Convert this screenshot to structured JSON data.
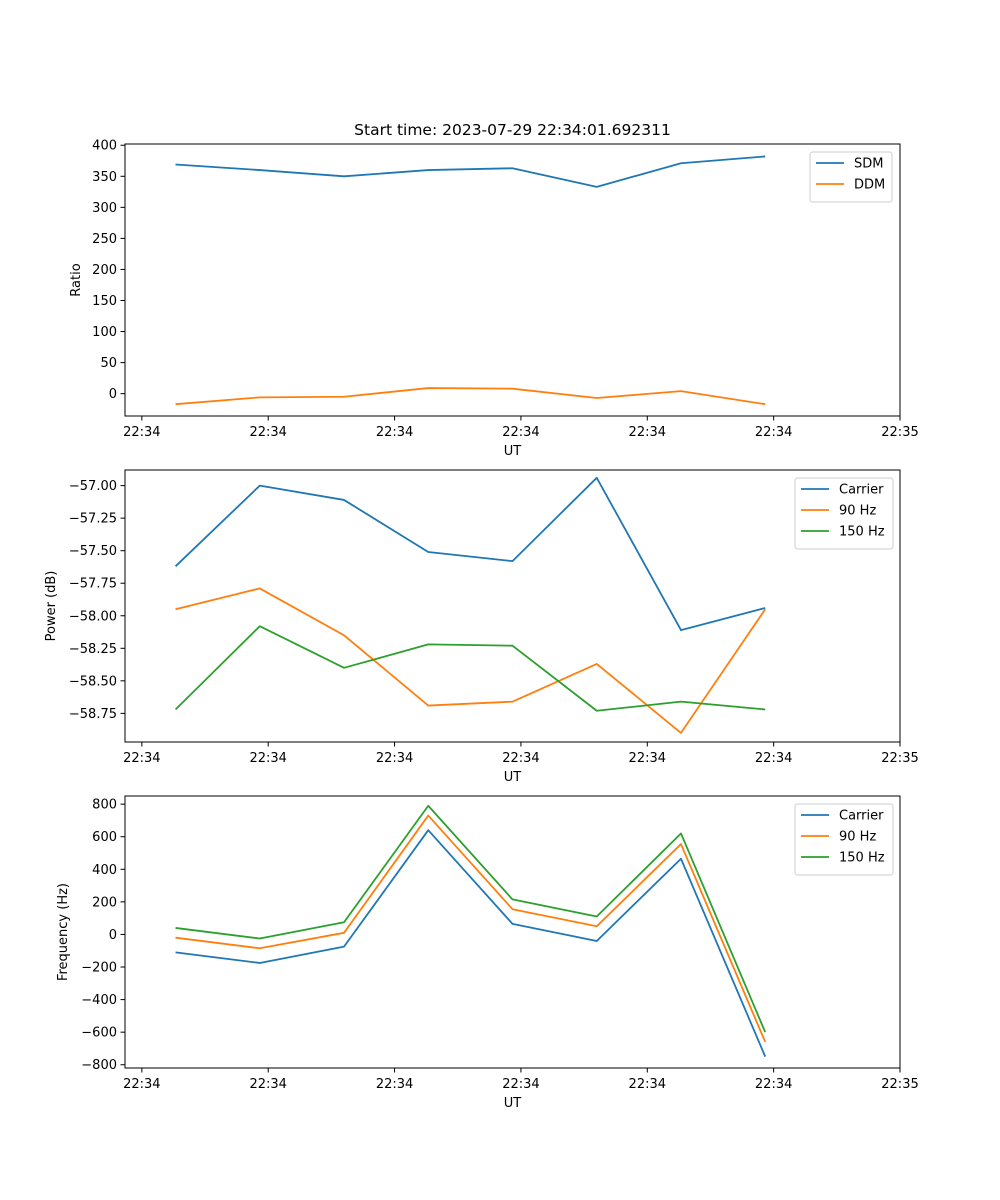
{
  "chart_data": [
    {
      "type": "line",
      "title": "Start time: 2023-07-29 22:34:01.692311",
      "xlabel": "UT",
      "ylabel": "Ratio",
      "xlim": [
        -0.6,
        8.6
      ],
      "ylim": [
        -36,
        402
      ],
      "x": [
        0,
        1,
        2,
        3,
        4,
        5,
        6,
        7
      ],
      "xticks": [
        -0.4,
        1.1,
        2.6,
        4.1,
        5.6,
        7.1,
        8.6
      ],
      "xtick_labels": [
        "22:34",
        "22:34",
        "22:34",
        "22:34",
        "22:34",
        "22:34",
        "22:35"
      ],
      "yticks": [
        0,
        50,
        100,
        150,
        200,
        250,
        300,
        350,
        400
      ],
      "ytick_labels": [
        "0",
        "50",
        "100",
        "150",
        "200",
        "250",
        "300",
        "350",
        "400"
      ],
      "legend_position": "top-right",
      "series": [
        {
          "name": "SDM",
          "color": "#1f77b4",
          "values": [
            369,
            360,
            350,
            360,
            363,
            333,
            371,
            382
          ]
        },
        {
          "name": "DDM",
          "color": "#ff7f0e",
          "values": [
            -17,
            -6,
            -5,
            9,
            8,
            -7,
            4,
            -17
          ]
        }
      ]
    },
    {
      "type": "line",
      "title": "",
      "xlabel": "UT",
      "ylabel": "Power (dB)",
      "xlim": [
        -0.6,
        8.6
      ],
      "ylim": [
        -58.97,
        -56.88
      ],
      "x": [
        0,
        1,
        2,
        3,
        4,
        5,
        6,
        7
      ],
      "xticks": [
        -0.4,
        1.1,
        2.6,
        4.1,
        5.6,
        7.1,
        8.6
      ],
      "xtick_labels": [
        "22:34",
        "22:34",
        "22:34",
        "22:34",
        "22:34",
        "22:34",
        "22:35"
      ],
      "yticks": [
        -58.75,
        -58.5,
        -58.25,
        -58.0,
        -57.75,
        -57.5,
        -57.25,
        -57.0
      ],
      "ytick_labels": [
        "−58.75",
        "−58.50",
        "−58.25",
        "−58.00",
        "−57.75",
        "−57.50",
        "−57.25",
        "−57.00"
      ],
      "legend_position": "top-right",
      "series": [
        {
          "name": "Carrier",
          "color": "#1f77b4",
          "values": [
            -57.62,
            -57.0,
            -57.11,
            -57.51,
            -57.58,
            -56.94,
            -58.11,
            -57.94
          ]
        },
        {
          "name": "90 Hz",
          "color": "#ff7f0e",
          "values": [
            -57.95,
            -57.79,
            -58.15,
            -58.69,
            -58.66,
            -58.37,
            -58.9,
            -57.95
          ]
        },
        {
          "name": "150 Hz",
          "color": "#2ca02c",
          "values": [
            -58.72,
            -58.08,
            -58.4,
            -58.22,
            -58.23,
            -58.73,
            -58.66,
            -58.72
          ]
        }
      ]
    },
    {
      "type": "line",
      "title": "",
      "xlabel": "UT",
      "ylabel": "Frequency (Hz)",
      "xlim": [
        -0.6,
        8.6
      ],
      "ylim": [
        -820,
        850
      ],
      "x": [
        0,
        1,
        2,
        3,
        4,
        5,
        6,
        7
      ],
      "xticks": [
        -0.4,
        1.1,
        2.6,
        4.1,
        5.6,
        7.1,
        8.6
      ],
      "xtick_labels": [
        "22:34",
        "22:34",
        "22:34",
        "22:34",
        "22:34",
        "22:34",
        "22:35"
      ],
      "yticks": [
        -800,
        -600,
        -400,
        -200,
        0,
        200,
        400,
        600,
        800
      ],
      "ytick_labels": [
        "−800",
        "−600",
        "−400",
        "−200",
        "0",
        "200",
        "400",
        "600",
        "800"
      ],
      "legend_position": "top-right",
      "series": [
        {
          "name": "Carrier",
          "color": "#1f77b4",
          "values": [
            -110,
            -175,
            -75,
            640,
            65,
            -40,
            465,
            -750
          ]
        },
        {
          "name": "90 Hz",
          "color": "#ff7f0e",
          "values": [
            -20,
            -85,
            10,
            730,
            155,
            50,
            555,
            -660
          ]
        },
        {
          "name": "150 Hz",
          "color": "#2ca02c",
          "values": [
            40,
            -25,
            75,
            790,
            215,
            110,
            620,
            -600
          ]
        }
      ]
    }
  ]
}
